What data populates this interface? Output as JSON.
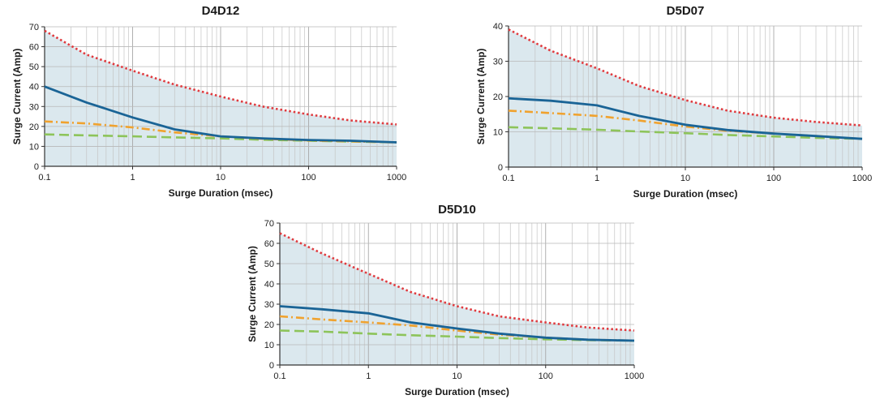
{
  "chart_data": [
    {
      "type": "line",
      "title": "D4D12",
      "xlabel": "Surge Duration (msec)",
      "ylabel": "Surge Current (Amp)",
      "x_scale": "log",
      "xlim": [
        0.1,
        1000
      ],
      "ylim": [
        0,
        70
      ],
      "xticks": [
        "0.1",
        "1",
        "10",
        "100",
        "1000"
      ],
      "yticks": [
        "0",
        "10",
        "20",
        "30",
        "40",
        "50",
        "60",
        "70"
      ],
      "grid": true,
      "shaded_region": "between x-axis and upper red dotted curve",
      "x": [
        0.1,
        0.3,
        1,
        3,
        10,
        30,
        100,
        300,
        1000
      ],
      "series": [
        {
          "color": "#e03a3e",
          "style": "dotted",
          "values": [
            68,
            56,
            48,
            41,
            35,
            30,
            26,
            23,
            21
          ]
        },
        {
          "color": "#1a6496",
          "style": "solid",
          "values": [
            40,
            32,
            24.5,
            18.5,
            15,
            14,
            13.2,
            12.8,
            12
          ]
        },
        {
          "color": "#f0a22e",
          "style": "dash-dot",
          "values": [
            22.5,
            21.5,
            19.5,
            17,
            15,
            13.8,
            13,
            12.5,
            12
          ]
        },
        {
          "color": "#8dc45a",
          "style": "dashed",
          "values": [
            16,
            15.5,
            15,
            14.5,
            14,
            13.3,
            12.8,
            12.4,
            12
          ]
        }
      ]
    },
    {
      "type": "line",
      "title": "D5D07",
      "xlabel": "Surge Duration (msec)",
      "ylabel": "Surge Current (Amp)",
      "x_scale": "log",
      "xlim": [
        0.1,
        1000
      ],
      "ylim": [
        0,
        40
      ],
      "xticks": [
        "0.1",
        "1",
        "10",
        "100",
        "1000"
      ],
      "yticks": [
        "0",
        "10",
        "20",
        "30",
        "40"
      ],
      "grid": true,
      "shaded_region": "between x-axis and upper red dotted curve",
      "x": [
        0.1,
        0.3,
        1,
        3,
        10,
        30,
        100,
        300,
        1000
      ],
      "series": [
        {
          "color": "#e03a3e",
          "style": "dotted",
          "values": [
            39,
            33,
            28,
            23,
            19,
            16,
            14,
            12.8,
            11.8
          ]
        },
        {
          "color": "#1a6496",
          "style": "solid",
          "values": [
            19.5,
            18.8,
            17.5,
            14.5,
            12,
            10.5,
            9.5,
            8.8,
            8
          ]
        },
        {
          "color": "#f0a22e",
          "style": "dash-dot",
          "values": [
            16,
            15.3,
            14.5,
            13.2,
            11.5,
            10.3,
            9.5,
            8.8,
            8
          ]
        },
        {
          "color": "#8dc45a",
          "style": "dashed",
          "values": [
            11.3,
            11,
            10.6,
            10.1,
            9.6,
            9.1,
            8.7,
            8.3,
            8
          ]
        }
      ]
    },
    {
      "type": "line",
      "title": "D5D10",
      "xlabel": "Surge Duration (msec)",
      "ylabel": "Surge Current (Amp)",
      "x_scale": "log",
      "xlim": [
        0.1,
        1000
      ],
      "ylim": [
        0,
        70
      ],
      "xticks": [
        "0.1",
        "1",
        "10",
        "100",
        "1000"
      ],
      "yticks": [
        "0",
        "10",
        "20",
        "30",
        "40",
        "50",
        "60",
        "70"
      ],
      "grid": true,
      "shaded_region": "between x-axis and upper red dotted curve",
      "x": [
        0.1,
        0.3,
        1,
        3,
        10,
        30,
        100,
        300,
        1000
      ],
      "series": [
        {
          "color": "#e03a3e",
          "style": "dotted",
          "values": [
            65,
            55,
            45,
            36,
            29,
            24,
            21,
            18.5,
            17
          ]
        },
        {
          "color": "#1a6496",
          "style": "solid",
          "values": [
            29,
            27.5,
            25.5,
            21,
            18,
            15.5,
            13.5,
            12.5,
            12
          ]
        },
        {
          "color": "#f0a22e",
          "style": "dash-dot",
          "values": [
            24,
            22.5,
            21,
            19.5,
            17,
            15,
            13.5,
            12.5,
            12
          ]
        },
        {
          "color": "#8dc45a",
          "style": "dashed",
          "values": [
            17,
            16.5,
            15.5,
            14.7,
            14,
            13.3,
            12.7,
            12.3,
            12
          ]
        }
      ]
    }
  ]
}
